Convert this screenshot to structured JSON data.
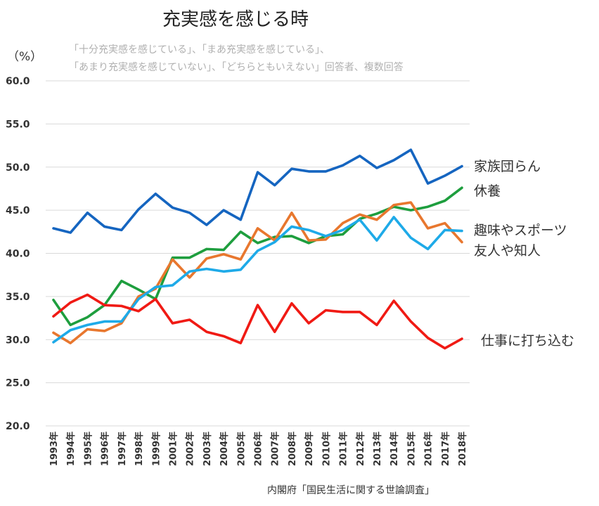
{
  "chart_data": {
    "type": "line",
    "title": "充実感を感じる時",
    "unit_label": "（%）",
    "notes": [
      "「十分充実感を感じている」、「まあ充実感を感じている」、",
      "「あまり充実感を感じていない」、「どちらともいえない」回答者、複数回答"
    ],
    "source": "内閣府「国民生活に関する世論調査」",
    "ylim": [
      20,
      60
    ],
    "yticks": [
      "20.0",
      "25.0",
      "30.0",
      "35.0",
      "40.0",
      "45.0",
      "50.0",
      "55.0",
      "60.0"
    ],
    "grid": true,
    "legend": "direct labels at right",
    "categories": [
      "1993年",
      "1994年",
      "1995年",
      "1996年",
      "1997年",
      "1998年",
      "1999年",
      "2001年",
      "2002年",
      "2003年",
      "2004年",
      "2005年",
      "2006年",
      "2007年",
      "2008年",
      "2009年",
      "2010年",
      "2011年",
      "2012年",
      "2013年",
      "2014年",
      "2015年",
      "2016年",
      "2017年",
      "2018年"
    ],
    "series": [
      {
        "name": "家族団らん",
        "color": "#1565c0",
        "values": [
          42.9,
          42.4,
          44.7,
          43.1,
          42.7,
          45.1,
          46.9,
          45.3,
          44.7,
          43.3,
          45.0,
          43.9,
          49.4,
          47.9,
          49.8,
          49.5,
          49.5,
          50.2,
          51.3,
          49.9,
          50.8,
          52.0,
          48.1,
          49.0,
          50.1
        ]
      },
      {
        "name": "休養",
        "color": "#1e9e3e",
        "values": [
          34.6,
          31.7,
          32.6,
          34.0,
          36.8,
          35.8,
          34.7,
          39.5,
          39.5,
          40.5,
          40.4,
          42.5,
          41.2,
          41.9,
          42.0,
          41.2,
          42.0,
          42.2,
          44.0,
          44.6,
          45.4,
          45.0,
          45.4,
          46.1,
          47.6
        ]
      },
      {
        "name": "趣味やスポーツ",
        "color": "#e8772e",
        "values": [
          30.8,
          29.6,
          31.2,
          31.0,
          31.9,
          35.0,
          35.9,
          39.3,
          37.2,
          39.4,
          39.9,
          39.3,
          42.9,
          41.5,
          44.7,
          41.5,
          41.6,
          43.5,
          44.5,
          43.9,
          45.6,
          45.9,
          42.9,
          43.5,
          41.3
        ]
      },
      {
        "name": "友人や知人",
        "color": "#1eaae8",
        "values": [
          29.7,
          31.1,
          31.7,
          32.1,
          32.1,
          34.7,
          36.1,
          36.3,
          37.9,
          38.2,
          37.9,
          38.1,
          40.3,
          41.3,
          43.1,
          42.7,
          42.0,
          42.7,
          43.9,
          41.5,
          44.2,
          41.8,
          40.5,
          42.7,
          42.6
        ]
      },
      {
        "name": "仕事に打ち込む",
        "color": "#f01a14",
        "values": [
          32.7,
          34.3,
          35.2,
          34.0,
          33.9,
          33.3,
          34.7,
          31.9,
          32.3,
          30.9,
          30.4,
          29.6,
          34.0,
          30.9,
          34.2,
          31.9,
          33.4,
          33.2,
          33.2,
          31.7,
          34.5,
          32.1,
          30.2,
          29.0,
          30.1
        ]
      }
    ]
  }
}
